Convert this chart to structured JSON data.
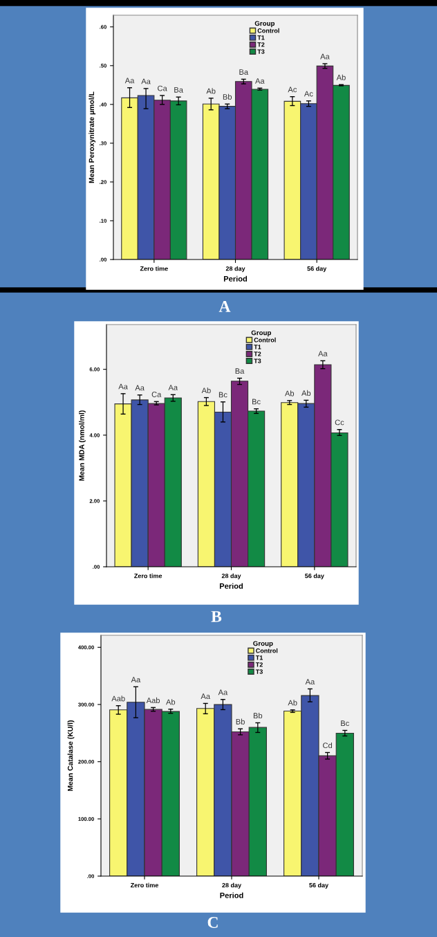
{
  "chart_data": [
    {
      "type": "bar",
      "xlabel": "Period",
      "ylabel": "Mean Peroxynitrate µmol/L",
      "legend_title": "Group",
      "legend": "top",
      "grid": false,
      "categories": [
        "Zero time",
        "28 day",
        "56 day"
      ],
      "ylim": [
        0,
        0.63
      ],
      "yticks": [
        {
          "value": 0,
          "label": ".00"
        },
        {
          "value": 0.1,
          "label": ".10"
        },
        {
          "value": 0.2,
          "label": ".20"
        },
        {
          "value": 0.3,
          "label": ".30"
        },
        {
          "value": 0.4,
          "label": ".40"
        },
        {
          "value": 0.5,
          "label": ".50"
        },
        {
          "value": 0.6,
          "label": ".60"
        }
      ],
      "annotations": [
        "A"
      ],
      "series": [
        {
          "name": "Control",
          "color": "#f8f570",
          "values": [
            0.417,
            0.401,
            0.408
          ],
          "errors": [
            [
              0.392,
              0.443
            ],
            [
              0.386,
              0.416
            ],
            [
              0.397,
              0.42
            ]
          ],
          "value_labels": [
            "Aa",
            "Ab",
            "Ac"
          ]
        },
        {
          "name": "T1",
          "color": "#3f55a8",
          "values": [
            0.423,
            0.395,
            0.402
          ],
          "errors": [
            [
              0.389,
              0.441
            ],
            [
              0.389,
              0.401
            ],
            [
              0.395,
              0.409
            ]
          ],
          "value_labels": [
            "Aa",
            "Bb",
            "Ac"
          ]
        },
        {
          "name": "T2",
          "color": "#7b2879",
          "values": [
            0.411,
            0.459,
            0.499
          ],
          "errors": [
            [
              0.4,
              0.423
            ],
            [
              0.453,
              0.465
            ],
            [
              0.493,
              0.505
            ]
          ],
          "value_labels": [
            "Ca",
            "Ba",
            "Aa"
          ]
        },
        {
          "name": "T3",
          "color": "#128a45",
          "values": [
            0.409,
            0.439,
            0.449
          ],
          "errors": [
            [
              0.399,
              0.419
            ],
            [
              0.437,
              0.442
            ],
            [
              0.448,
              0.451
            ]
          ],
          "value_labels": [
            "Ba",
            "Aa",
            "Ab"
          ]
        }
      ]
    },
    {
      "type": "bar",
      "xlabel": "Period",
      "ylabel": "Mean MDA (nmol/ml)",
      "legend_title": "Group",
      "legend": "top",
      "grid": false,
      "categories": [
        "Zero time",
        "28 day",
        "56 day"
      ],
      "ylim": [
        0,
        7.36
      ],
      "yticks": [
        {
          "value": 0,
          "label": ".00"
        },
        {
          "value": 2,
          "label": "2.00"
        },
        {
          "value": 4,
          "label": "4.00"
        },
        {
          "value": 6,
          "label": "6.00"
        }
      ],
      "annotations": [
        "B"
      ],
      "series": [
        {
          "name": "Control",
          "color": "#f8f570",
          "values": [
            4.95,
            5.02,
            4.99
          ],
          "errors": [
            [
              4.64,
              5.26
            ],
            [
              4.9,
              5.14
            ],
            [
              4.93,
              5.05
            ]
          ],
          "value_labels": [
            "Aa",
            "Ab",
            "Ab"
          ]
        },
        {
          "name": "T1",
          "color": "#3f55a8",
          "values": [
            5.07,
            4.7,
            4.96
          ],
          "errors": [
            [
              4.93,
              5.22
            ],
            [
              4.4,
              5.01
            ],
            [
              4.85,
              5.06
            ]
          ],
          "value_labels": [
            "Aa",
            "Bc",
            "Ab"
          ]
        },
        {
          "name": "T2",
          "color": "#7b2879",
          "values": [
            4.96,
            5.64,
            6.14
          ],
          "errors": [
            [
              4.92,
              5.02
            ],
            [
              5.54,
              5.73
            ],
            [
              6.02,
              6.26
            ]
          ],
          "value_labels": [
            "Ca",
            "Ba",
            "Aa"
          ]
        },
        {
          "name": "T3",
          "color": "#128a45",
          "values": [
            5.13,
            4.73,
            4.07
          ],
          "errors": [
            [
              5.03,
              5.23
            ],
            [
              4.66,
              4.8
            ],
            [
              3.99,
              4.17
            ]
          ],
          "value_labels": [
            "Aa",
            "Bc",
            "Cc"
          ]
        }
      ]
    },
    {
      "type": "bar",
      "xlabel": "Period",
      "ylabel": "Mean Catalase (KU/l)",
      "legend_title": "Group",
      "legend": "top",
      "grid": false,
      "categories": [
        "Zero time",
        "28 day",
        "56 day"
      ],
      "ylim": [
        0,
        421
      ],
      "yticks": [
        {
          "value": 0,
          "label": ".00"
        },
        {
          "value": 100,
          "label": "100.00"
        },
        {
          "value": 200,
          "label": "200.00"
        },
        {
          "value": 300,
          "label": "300.00"
        },
        {
          "value": 400,
          "label": "400.00"
        }
      ],
      "annotations": [
        "C"
      ],
      "series": [
        {
          "name": "Control",
          "color": "#f8f570",
          "values": [
            290.6,
            293.0,
            288.6
          ],
          "errors": [
            [
              283.0,
              297.9
            ],
            [
              283.8,
              301.9
            ],
            [
              286.2,
              290.6
            ]
          ],
          "value_labels": [
            "Aab",
            "Aa",
            "Ab"
          ]
        },
        {
          "name": "T1",
          "color": "#3f55a8",
          "values": [
            303.9,
            299.9,
            315.6
          ],
          "errors": [
            [
              276.9,
              331.0
            ],
            [
              291.0,
              308.8
            ],
            [
              304.7,
              327.3
            ]
          ],
          "value_labels": [
            "Aa",
            "Aa",
            "Aa"
          ]
        },
        {
          "name": "T2",
          "color": "#7b2879",
          "values": [
            291.4,
            252.3,
            210.3
          ],
          "errors": [
            [
              288.2,
              294.7
            ],
            [
              247.0,
              257.5
            ],
            [
              204.6,
              216.0
            ]
          ],
          "value_labels": [
            "Aab",
            "Bb",
            "Cd"
          ]
        },
        {
          "name": "T3",
          "color": "#128a45",
          "values": [
            287.8,
            259.9,
            249.8
          ],
          "errors": [
            [
              284.6,
              291.8
            ],
            [
              251.1,
              268.0
            ],
            [
              245.0,
              254.7
            ]
          ],
          "value_labels": [
            "Ab",
            "Bb",
            "Bc"
          ]
        }
      ]
    }
  ]
}
